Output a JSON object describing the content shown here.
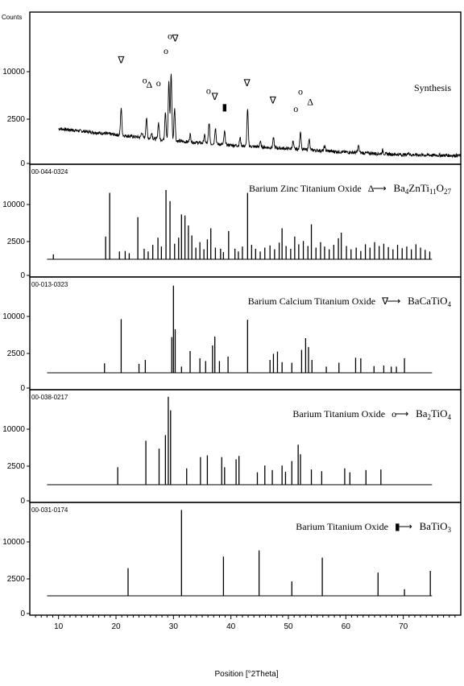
{
  "chart_data": {
    "type": "line",
    "ylabel": "Counts",
    "xlabel": "Position [°2Theta]",
    "xlim": [
      5,
      80
    ],
    "x_ticks": [
      10,
      20,
      30,
      40,
      50,
      60,
      70
    ],
    "y_ticks": [
      0,
      2500,
      10000
    ],
    "panels": [
      {
        "id": "synthesis",
        "ref_code": "",
        "label_parts": [
          "Synthesis"
        ],
        "formula_parts": [],
        "ylim": [
          0,
          16000
        ],
        "plot": "profile",
        "profile": {
          "x_start": 10,
          "x_end": 80,
          "baseline": [
            [
              10,
              4000
            ],
            [
              20,
              3300
            ],
            [
              30,
              2600
            ],
            [
              40,
              2100
            ],
            [
              50,
              1700
            ],
            [
              60,
              1300
            ],
            [
              70,
              1000
            ],
            [
              80,
              900
            ]
          ],
          "peaks": [
            [
              20.9,
              3200
            ],
            [
              24.5,
              600
            ],
            [
              25.3,
              2300
            ],
            [
              26.2,
              700
            ],
            [
              27.4,
              1900
            ],
            [
              28.6,
              3300
            ],
            [
              29.2,
              6800
            ],
            [
              29.6,
              7800
            ],
            [
              30.2,
              3800
            ],
            [
              32.9,
              900
            ],
            [
              35.4,
              900
            ],
            [
              36.2,
              2400
            ],
            [
              37.3,
              1900
            ],
            [
              38.9,
              1500
            ],
            [
              41.6,
              900
            ],
            [
              42.9,
              4200
            ],
            [
              45.1,
              600
            ],
            [
              47.4,
              1100
            ],
            [
              50.8,
              800
            ],
            [
              52.1,
              2100
            ],
            [
              53.6,
              1300
            ],
            [
              56.3,
              500
            ],
            [
              62.2,
              800
            ],
            [
              66.4,
              400
            ],
            [
              70.9,
              300
            ]
          ]
        },
        "markers": [
          {
            "symbol": "∇",
            "x": 20.9,
            "y": 11500
          },
          {
            "symbol": "o",
            "x": 25.0,
            "y": 9200
          },
          {
            "symbol": "Δ",
            "x": 25.8,
            "y": 8700
          },
          {
            "symbol": "o",
            "x": 27.4,
            "y": 8900
          },
          {
            "symbol": "o",
            "x": 28.7,
            "y": 12600
          },
          {
            "symbol": "o",
            "x": 29.4,
            "y": 14300
          },
          {
            "symbol": "∇",
            "x": 30.3,
            "y": 14000
          },
          {
            "symbol": "o",
            "x": 36.1,
            "y": 8000
          },
          {
            "symbol": "∇",
            "x": 37.2,
            "y": 7300
          },
          {
            "symbol": "▮",
            "x": 38.9,
            "y": 6100
          },
          {
            "symbol": "∇",
            "x": 42.8,
            "y": 8900
          },
          {
            "symbol": "∇",
            "x": 47.3,
            "y": 6900
          },
          {
            "symbol": "o",
            "x": 51.3,
            "y": 5900
          },
          {
            "symbol": "o",
            "x": 52.1,
            "y": 7900
          },
          {
            "symbol": "Δ",
            "x": 53.8,
            "y": 6700
          }
        ]
      },
      {
        "id": "ba4zn",
        "ref_code": "00-044-0324",
        "label_parts": [
          "Barium Zinc Titanium Oxide",
          "Δ"
        ],
        "formula_parts": [
          "Ba",
          "4",
          "ZnTi",
          "11",
          "O",
          "27"
        ],
        "ylim": [
          0,
          16000
        ],
        "plot": "sticks",
        "baseline_y": 0,
        "peaks": [
          [
            9.1,
            900
          ],
          [
            18.2,
            4100
          ],
          [
            18.9,
            12000
          ],
          [
            20.6,
            1400
          ],
          [
            21.6,
            1500
          ],
          [
            22.3,
            1100
          ],
          [
            23.8,
            7600
          ],
          [
            24.9,
            1900
          ],
          [
            25.6,
            1400
          ],
          [
            26.4,
            2600
          ],
          [
            27.3,
            3900
          ],
          [
            27.9,
            2300
          ],
          [
            28.7,
            12500
          ],
          [
            29.4,
            10500
          ],
          [
            30.2,
            2800
          ],
          [
            30.9,
            3900
          ],
          [
            31.4,
            8100
          ],
          [
            32.0,
            7900
          ],
          [
            32.6,
            6100
          ],
          [
            33.2,
            4300
          ],
          [
            33.9,
            2100
          ],
          [
            34.6,
            3100
          ],
          [
            35.3,
            1800
          ],
          [
            35.9,
            3600
          ],
          [
            36.5,
            5600
          ],
          [
            37.3,
            2100
          ],
          [
            38.2,
            1900
          ],
          [
            38.7,
            1300
          ],
          [
            39.6,
            5100
          ],
          [
            40.7,
            1900
          ],
          [
            41.3,
            1400
          ],
          [
            42.0,
            2300
          ],
          [
            42.9,
            12000
          ],
          [
            43.6,
            2600
          ],
          [
            44.3,
            1900
          ],
          [
            45.1,
            1400
          ],
          [
            45.9,
            2100
          ],
          [
            46.8,
            2500
          ],
          [
            47.6,
            1800
          ],
          [
            48.4,
            3000
          ],
          [
            48.9,
            5600
          ],
          [
            49.6,
            2400
          ],
          [
            50.4,
            1900
          ],
          [
            51.1,
            4100
          ],
          [
            51.8,
            2700
          ],
          [
            52.6,
            3300
          ],
          [
            53.4,
            2400
          ],
          [
            54.0,
            6300
          ],
          [
            54.8,
            2100
          ],
          [
            55.6,
            3100
          ],
          [
            56.3,
            2300
          ],
          [
            57.1,
            1800
          ],
          [
            57.9,
            2600
          ],
          [
            58.7,
            3800
          ],
          [
            59.2,
            4800
          ],
          [
            60.1,
            2400
          ],
          [
            60.9,
            1800
          ],
          [
            61.8,
            2100
          ],
          [
            62.6,
            1500
          ],
          [
            63.4,
            2700
          ],
          [
            64.2,
            2100
          ],
          [
            65.0,
            3100
          ],
          [
            65.8,
            2400
          ],
          [
            66.6,
            2800
          ],
          [
            67.4,
            2200
          ],
          [
            68.2,
            1800
          ],
          [
            69.0,
            2600
          ],
          [
            69.8,
            2000
          ],
          [
            70.6,
            2300
          ],
          [
            71.4,
            1800
          ],
          [
            72.2,
            2700
          ],
          [
            73.0,
            2100
          ],
          [
            73.8,
            1700
          ],
          [
            74.6,
            1400
          ]
        ]
      },
      {
        "id": "bacatio4",
        "ref_code": "00-013-0323",
        "label_parts": [
          "Barium Calcium Titanium Oxide",
          "∇"
        ],
        "formula_parts": [
          "BaCaTiO",
          "4"
        ],
        "ylim": [
          0,
          16000
        ],
        "plot": "sticks",
        "baseline_y": 0,
        "peaks": [
          [
            18.0,
            1700
          ],
          [
            20.9,
            9600
          ],
          [
            24.0,
            1600
          ],
          [
            25.1,
            2300
          ],
          [
            29.7,
            6400
          ],
          [
            30.0,
            15600
          ],
          [
            30.3,
            7800
          ],
          [
            31.4,
            1100
          ],
          [
            32.9,
            3900
          ],
          [
            34.6,
            2600
          ],
          [
            35.6,
            2100
          ],
          [
            36.8,
            4900
          ],
          [
            37.2,
            6500
          ],
          [
            38.0,
            2100
          ],
          [
            39.5,
            2900
          ],
          [
            42.9,
            9500
          ],
          [
            46.8,
            2300
          ],
          [
            47.4,
            3400
          ],
          [
            48.1,
            3800
          ],
          [
            48.9,
            1900
          ],
          [
            50.6,
            1800
          ],
          [
            52.3,
            4100
          ],
          [
            53.0,
            6200
          ],
          [
            53.5,
            4600
          ],
          [
            54.1,
            2300
          ],
          [
            56.6,
            1100
          ],
          [
            58.8,
            1800
          ],
          [
            61.7,
            2700
          ],
          [
            62.6,
            2600
          ],
          [
            64.9,
            1200
          ],
          [
            66.6,
            1300
          ],
          [
            67.9,
            1100
          ],
          [
            68.8,
            1100
          ],
          [
            70.2,
            2600
          ]
        ]
      },
      {
        "id": "ba2tio4",
        "ref_code": "00-038-0217",
        "label_parts": [
          "Barium Titanium Oxide",
          "o"
        ],
        "formula_parts": [
          "Ba",
          "2",
          "TiO",
          "4"
        ],
        "ylim": [
          0,
          16000
        ],
        "plot": "sticks",
        "baseline_y": 0,
        "peaks": [
          [
            20.3,
            3100
          ],
          [
            25.2,
            7800
          ],
          [
            27.5,
            6400
          ],
          [
            28.6,
            8800
          ],
          [
            29.1,
            15600
          ],
          [
            29.5,
            13200
          ],
          [
            32.3,
            2900
          ],
          [
            34.7,
            4900
          ],
          [
            35.9,
            5200
          ],
          [
            38.4,
            4900
          ],
          [
            38.9,
            3100
          ],
          [
            40.9,
            4500
          ],
          [
            41.4,
            5100
          ],
          [
            44.6,
            2200
          ],
          [
            45.9,
            3400
          ],
          [
            47.2,
            2600
          ],
          [
            48.9,
            3400
          ],
          [
            49.5,
            2300
          ],
          [
            50.6,
            4200
          ],
          [
            51.7,
            7100
          ],
          [
            52.1,
            5400
          ],
          [
            54.0,
            2700
          ],
          [
            55.8,
            2400
          ],
          [
            59.8,
            2900
          ],
          [
            60.7,
            2200
          ],
          [
            63.5,
            2600
          ],
          [
            66.1,
            2700
          ]
        ]
      },
      {
        "id": "batio3",
        "ref_code": "00-031-0174",
        "label_parts": [
          "Barium Titanium Oxide",
          "▮"
        ],
        "formula_parts": [
          "BaTiO",
          "3"
        ],
        "ylim": [
          0,
          16000
        ],
        "plot": "sticks",
        "baseline_y": 0,
        "peaks": [
          [
            22.1,
            5000
          ],
          [
            31.4,
            15500
          ],
          [
            38.7,
            7100
          ],
          [
            44.9,
            8200
          ],
          [
            50.6,
            2600
          ],
          [
            55.9,
            6900
          ],
          [
            65.6,
            4200
          ],
          [
            70.2,
            1200
          ],
          [
            74.7,
            4500
          ]
        ]
      }
    ]
  }
}
